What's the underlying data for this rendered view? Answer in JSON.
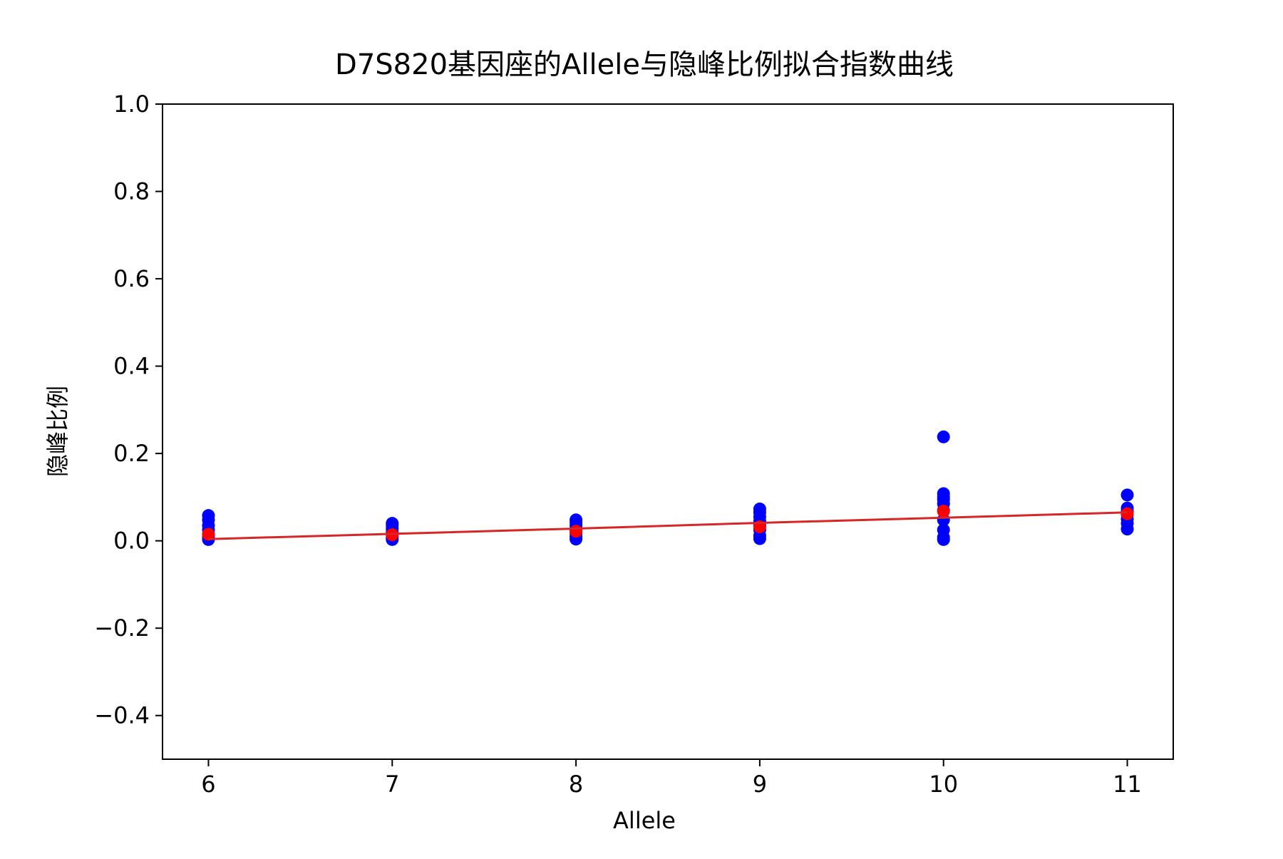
{
  "chart_data": {
    "type": "scatter",
    "title": "D7S820基因座的Allele与隐峰比例拟合指数曲线",
    "xlabel": "Allele",
    "ylabel": "隐峰比例",
    "xlim": [
      5.75,
      11.25
    ],
    "ylim": [
      -0.5,
      1.0
    ],
    "xticks": [
      6,
      7,
      8,
      9,
      10,
      11
    ],
    "yticks": [
      -0.4,
      -0.2,
      0.0,
      0.2,
      0.4,
      0.6,
      0.8,
      1.0
    ],
    "grid": false,
    "series": [
      {
        "kind": "scatter",
        "color": "#0000ff",
        "points": [
          [
            6,
            0.003
          ],
          [
            6,
            0.008
          ],
          [
            6,
            0.015
          ],
          [
            6,
            0.025
          ],
          [
            6,
            0.035
          ],
          [
            6,
            0.048
          ],
          [
            6,
            0.058
          ],
          [
            7,
            0.003
          ],
          [
            7,
            0.008
          ],
          [
            7,
            0.015
          ],
          [
            7,
            0.02
          ],
          [
            7,
            0.028
          ],
          [
            7,
            0.035
          ],
          [
            7,
            0.04
          ],
          [
            8,
            0.004
          ],
          [
            8,
            0.01
          ],
          [
            8,
            0.018
          ],
          [
            8,
            0.025
          ],
          [
            8,
            0.035
          ],
          [
            8,
            0.042
          ],
          [
            8,
            0.048
          ],
          [
            9,
            0.005
          ],
          [
            9,
            0.012
          ],
          [
            9,
            0.025
          ],
          [
            9,
            0.035
          ],
          [
            9,
            0.045
          ],
          [
            9,
            0.055
          ],
          [
            9,
            0.065
          ],
          [
            9,
            0.073
          ],
          [
            10,
            0.003
          ],
          [
            10,
            0.008
          ],
          [
            10,
            0.025
          ],
          [
            10,
            0.048
          ],
          [
            10,
            0.07
          ],
          [
            10,
            0.085
          ],
          [
            10,
            0.095
          ],
          [
            10,
            0.1
          ],
          [
            10,
            0.108
          ],
          [
            10,
            0.238
          ],
          [
            11,
            0.027
          ],
          [
            11,
            0.04
          ],
          [
            11,
            0.05
          ],
          [
            11,
            0.06
          ],
          [
            11,
            0.068
          ],
          [
            11,
            0.075
          ],
          [
            11,
            0.105
          ]
        ]
      },
      {
        "kind": "scatter",
        "color": "#ff0000",
        "points": [
          [
            6,
            0.015
          ],
          [
            7,
            0.014
          ],
          [
            8,
            0.022
          ],
          [
            9,
            0.032
          ],
          [
            10,
            0.068
          ],
          [
            11,
            0.062
          ]
        ]
      },
      {
        "kind": "line",
        "color": "#d62728",
        "points": [
          [
            6,
            0.004
          ],
          [
            7,
            0.016
          ],
          [
            8,
            0.028
          ],
          [
            9,
            0.041
          ],
          [
            10,
            0.053
          ],
          [
            11,
            0.065
          ]
        ]
      }
    ]
  }
}
